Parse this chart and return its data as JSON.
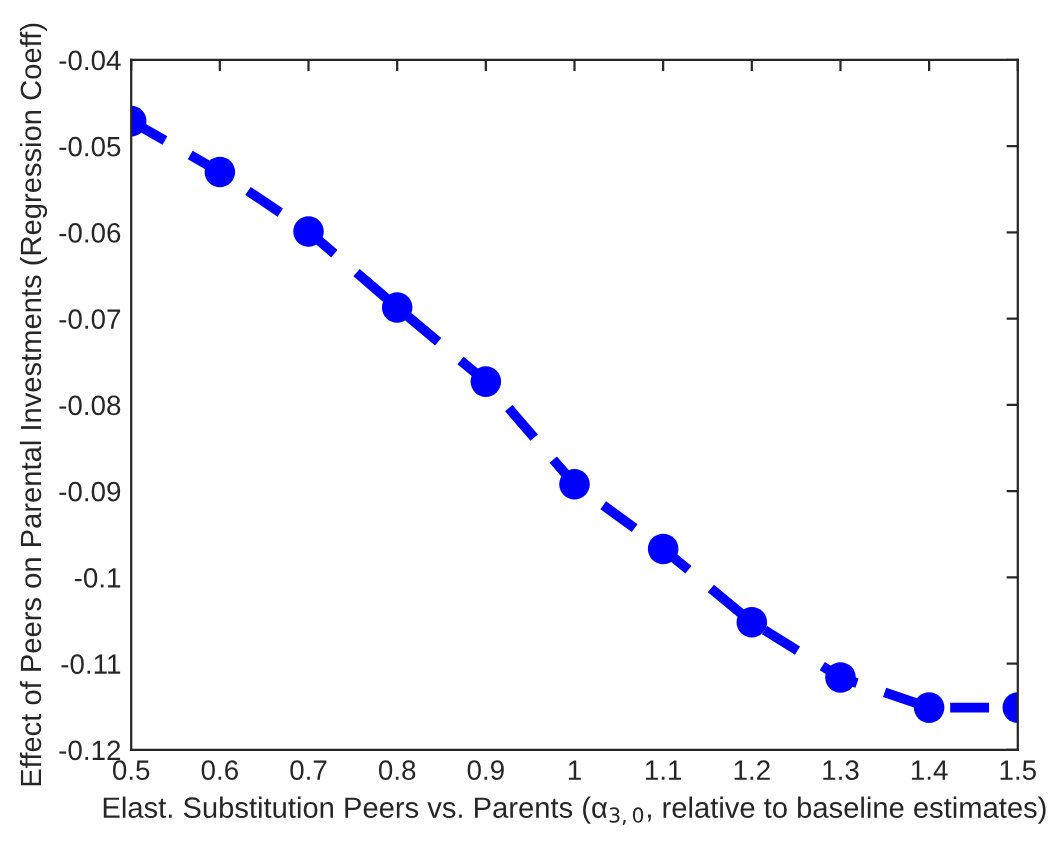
{
  "chart_data": {
    "type": "line",
    "xlabel": "Elast. Substitution Peers vs. Parents (α$_{3,0}$, relative to baseline estimates)",
    "ylabel": "Effect of Peers on Parental Investments (Regression Coeff)",
    "x": [
      0.5,
      0.6,
      0.7,
      0.8,
      0.9,
      1.0,
      1.1,
      1.2,
      1.3,
      1.4,
      1.5
    ],
    "series": [
      {
        "color": "#0000ff",
        "values": [
          -0.0471,
          -0.053,
          -0.0599,
          -0.0687,
          -0.0773,
          -0.0892,
          -0.0967,
          -0.1052,
          -0.1116,
          -0.1151,
          -0.1151
        ]
      }
    ],
    "xlim": [
      0.5,
      1.5
    ],
    "xticks": [
      0.5,
      0.6,
      0.7,
      0.8,
      0.9,
      1,
      1.1,
      1.2,
      1.3,
      1.4,
      1.5
    ],
    "ylim": [
      -0.12,
      -0.04
    ],
    "yticks": [
      -0.12,
      -0.11,
      -0.1,
      -0.09,
      -0.08,
      -0.07,
      -0.06,
      -0.05,
      -0.04
    ],
    "marker": "circle",
    "line_style": "dashed",
    "grid": false,
    "legend": false
  }
}
